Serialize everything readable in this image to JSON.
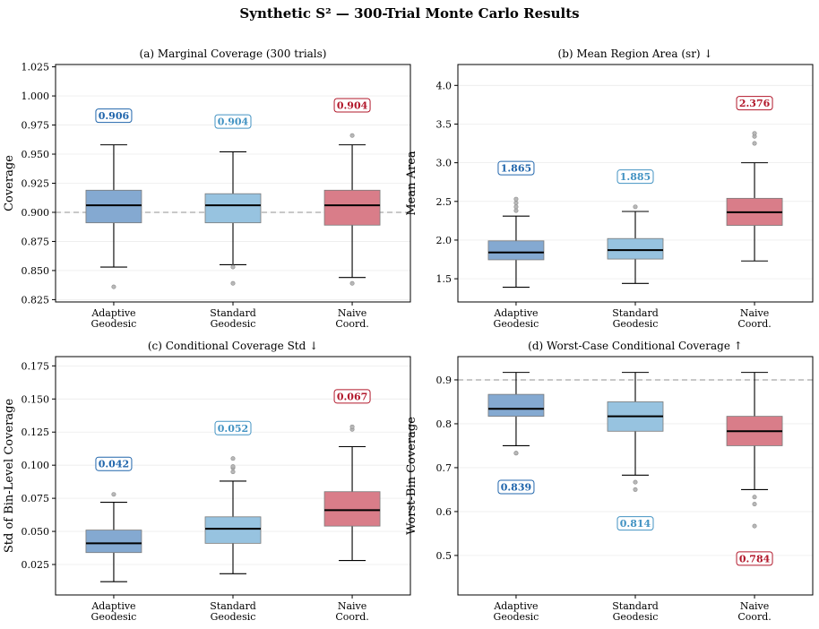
{
  "figure_title": "Synthetic S² — 300-Trial Monte Carlo Results",
  "colors": {
    "adaptive": "#2166ac",
    "standard": "#4393c3",
    "naive": "#b2182b",
    "box_adaptive": "#84a9d1",
    "box_standard": "#97c3e0",
    "box_naive": "#d97d89"
  },
  "chart_data": [
    {
      "type": "box",
      "id": "a",
      "title": "(a)  Marginal Coverage (300 trials)",
      "ylabel": "Coverage",
      "ylim": [
        0.823,
        1.027
      ],
      "yticks": [
        0.825,
        0.85,
        0.875,
        0.9,
        0.925,
        0.95,
        0.975,
        1.0,
        1.025
      ],
      "tick_format": 3,
      "reference_line": 0.9,
      "categories": [
        "Adaptive\nGeodesic",
        "Standard\nGeodesic",
        "Naive\nCoord."
      ],
      "boxes": [
        {
          "q1": 0.891,
          "median": 0.906,
          "q3": 0.919,
          "whisker_low": 0.853,
          "whisker_high": 0.958,
          "outliers": [
            0.836
          ]
        },
        {
          "q1": 0.891,
          "median": 0.906,
          "q3": 0.916,
          "whisker_low": 0.855,
          "whisker_high": 0.952,
          "outliers": [
            0.853,
            0.839
          ]
        },
        {
          "q1": 0.889,
          "median": 0.906,
          "q3": 0.919,
          "whisker_low": 0.844,
          "whisker_high": 0.958,
          "outliers": [
            0.966,
            0.839
          ]
        }
      ],
      "annotations": [
        {
          "text": "0.906",
          "y": 0.983
        },
        {
          "text": "0.904",
          "y": 0.978
        },
        {
          "text": "0.904",
          "y": 0.992
        }
      ]
    },
    {
      "type": "box",
      "id": "b",
      "title": "(b)  Mean Region Area (sr) ↓",
      "ylabel": "Mean Area",
      "ylim": [
        1.2,
        4.27
      ],
      "yticks": [
        1.5,
        2.0,
        2.5,
        3.0,
        3.5,
        4.0
      ],
      "tick_format": 1,
      "reference_line": null,
      "categories": [
        "Adaptive\nGeodesic",
        "Standard\nGeodesic",
        "Naive\nCoord."
      ],
      "boxes": [
        {
          "q1": 1.745,
          "median": 1.84,
          "q3": 1.99,
          "whisker_low": 1.39,
          "whisker_high": 2.31,
          "outliers": [
            2.38,
            2.43,
            2.48,
            2.53
          ]
        },
        {
          "q1": 1.755,
          "median": 1.87,
          "q3": 2.02,
          "whisker_low": 1.44,
          "whisker_high": 2.37,
          "outliers": [
            2.43
          ]
        },
        {
          "q1": 2.19,
          "median": 2.36,
          "q3": 2.54,
          "whisker_low": 1.73,
          "whisker_high": 3.0,
          "outliers": [
            3.25,
            3.34,
            3.38
          ]
        }
      ],
      "annotations": [
        {
          "text": "1.865",
          "y": 2.93
        },
        {
          "text": "1.885",
          "y": 2.82
        },
        {
          "text": "2.376",
          "y": 3.77
        }
      ]
    },
    {
      "type": "box",
      "id": "c",
      "title": "(c)  Conditional Coverage Std ↓",
      "ylabel": "Std of Bin-Level Coverage",
      "ylim": [
        0.002,
        0.182
      ],
      "yticks": [
        0.025,
        0.05,
        0.075,
        0.1,
        0.125,
        0.15,
        0.175
      ],
      "tick_format": 3,
      "reference_line": null,
      "categories": [
        "Adaptive\nGeodesic",
        "Standard\nGeodesic",
        "Naive\nCoord."
      ],
      "boxes": [
        {
          "q1": 0.034,
          "median": 0.041,
          "q3": 0.051,
          "whisker_low": 0.012,
          "whisker_high": 0.072,
          "outliers": [
            0.078
          ]
        },
        {
          "q1": 0.041,
          "median": 0.052,
          "q3": 0.061,
          "whisker_low": 0.018,
          "whisker_high": 0.088,
          "outliers": [
            0.095,
            0.098,
            0.099,
            0.105
          ]
        },
        {
          "q1": 0.054,
          "median": 0.066,
          "q3": 0.08,
          "whisker_low": 0.028,
          "whisker_high": 0.114,
          "outliers": [
            0.127,
            0.129
          ]
        }
      ],
      "annotations": [
        {
          "text": "0.042",
          "y": 0.101
        },
        {
          "text": "0.052",
          "y": 0.128
        },
        {
          "text": "0.067",
          "y": 0.152
        }
      ]
    },
    {
      "type": "box",
      "id": "d",
      "title": "(d)  Worst-Case Conditional Coverage ↑",
      "ylabel": "Worst-Bin Coverage",
      "ylim": [
        0.41,
        0.953
      ],
      "yticks": [
        0.5,
        0.6,
        0.7,
        0.8,
        0.9
      ],
      "tick_format": 1,
      "reference_line": 0.9,
      "categories": [
        "Adaptive\nGeodesic",
        "Standard\nGeodesic",
        "Naive\nCoord."
      ],
      "boxes": [
        {
          "q1": 0.817,
          "median": 0.834,
          "q3": 0.867,
          "whisker_low": 0.75,
          "whisker_high": 0.917,
          "outliers": [
            0.733,
            0.733
          ]
        },
        {
          "q1": 0.783,
          "median": 0.817,
          "q3": 0.85,
          "whisker_low": 0.683,
          "whisker_high": 0.917,
          "outliers": [
            0.667,
            0.65
          ]
        },
        {
          "q1": 0.75,
          "median": 0.783,
          "q3": 0.817,
          "whisker_low": 0.65,
          "whisker_high": 0.917,
          "outliers": [
            0.633,
            0.617,
            0.567
          ]
        }
      ],
      "annotations": [
        {
          "text": "0.839",
          "y": 0.656
        },
        {
          "text": "0.814",
          "y": 0.573
        },
        {
          "text": "0.784",
          "y": 0.493
        }
      ]
    }
  ]
}
